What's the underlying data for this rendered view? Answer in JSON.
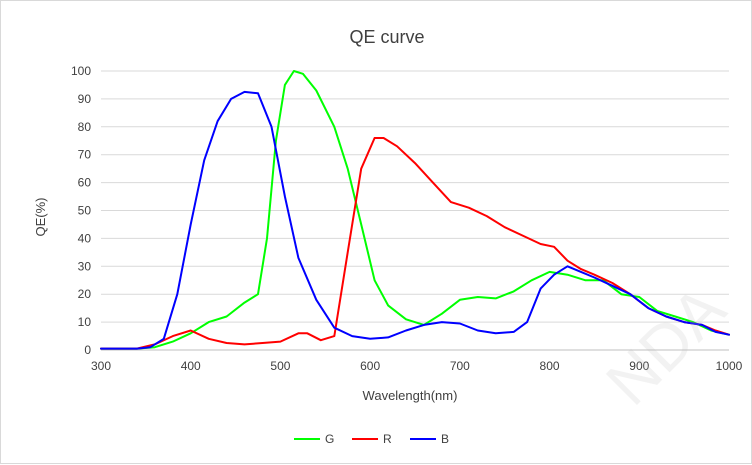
{
  "chart_data": {
    "type": "line",
    "title": "QE curve",
    "xlabel": "Wavelength(nm)",
    "ylabel": "QE(%)",
    "xlim": [
      300,
      1000
    ],
    "ylim": [
      0,
      100
    ],
    "x_ticks": [
      300,
      400,
      500,
      600,
      700,
      800,
      900,
      1000
    ],
    "y_ticks": [
      0,
      10,
      20,
      30,
      40,
      50,
      60,
      70,
      80,
      90,
      100
    ],
    "grid": "horizontal",
    "legend_position": "bottom",
    "series": [
      {
        "name": "G",
        "color": "#00ff00",
        "points": [
          [
            300,
            0.5
          ],
          [
            340,
            0.5
          ],
          [
            360,
            1
          ],
          [
            380,
            3
          ],
          [
            400,
            6
          ],
          [
            420,
            10
          ],
          [
            440,
            12
          ],
          [
            460,
            17
          ],
          [
            475,
            20
          ],
          [
            485,
            40
          ],
          [
            495,
            75
          ],
          [
            505,
            95
          ],
          [
            515,
            100
          ],
          [
            525,
            99
          ],
          [
            540,
            93
          ],
          [
            560,
            80
          ],
          [
            575,
            65
          ],
          [
            590,
            45
          ],
          [
            605,
            25
          ],
          [
            620,
            16
          ],
          [
            640,
            11
          ],
          [
            660,
            9
          ],
          [
            680,
            13
          ],
          [
            700,
            18
          ],
          [
            720,
            19
          ],
          [
            740,
            18.5
          ],
          [
            760,
            21
          ],
          [
            780,
            25
          ],
          [
            800,
            28
          ],
          [
            820,
            27
          ],
          [
            840,
            25
          ],
          [
            860,
            25
          ],
          [
            880,
            20
          ],
          [
            900,
            19
          ],
          [
            920,
            14
          ],
          [
            940,
            12
          ],
          [
            960,
            10
          ],
          [
            980,
            7
          ],
          [
            1000,
            5.5
          ]
        ]
      },
      {
        "name": "R",
        "color": "#ff0000",
        "points": [
          [
            300,
            0.5
          ],
          [
            340,
            0.5
          ],
          [
            360,
            2
          ],
          [
            380,
            5
          ],
          [
            400,
            7
          ],
          [
            420,
            4
          ],
          [
            440,
            2.5
          ],
          [
            460,
            2
          ],
          [
            480,
            2.5
          ],
          [
            500,
            3
          ],
          [
            520,
            6
          ],
          [
            530,
            6
          ],
          [
            545,
            3.5
          ],
          [
            560,
            5
          ],
          [
            575,
            35
          ],
          [
            590,
            65
          ],
          [
            605,
            76
          ],
          [
            615,
            76
          ],
          [
            630,
            73
          ],
          [
            650,
            67
          ],
          [
            670,
            60
          ],
          [
            690,
            53
          ],
          [
            710,
            51
          ],
          [
            730,
            48
          ],
          [
            750,
            44
          ],
          [
            770,
            41
          ],
          [
            790,
            38
          ],
          [
            805,
            37
          ],
          [
            820,
            32
          ],
          [
            835,
            29
          ],
          [
            850,
            27
          ],
          [
            870,
            24
          ],
          [
            890,
            20
          ],
          [
            910,
            15
          ],
          [
            930,
            12
          ],
          [
            950,
            10
          ],
          [
            970,
            9
          ],
          [
            985,
            7
          ],
          [
            1000,
            5.5
          ]
        ]
      },
      {
        "name": "B",
        "color": "#0000ff",
        "points": [
          [
            300,
            0.5
          ],
          [
            340,
            0.5
          ],
          [
            355,
            1
          ],
          [
            370,
            4
          ],
          [
            385,
            20
          ],
          [
            400,
            45
          ],
          [
            415,
            68
          ],
          [
            430,
            82
          ],
          [
            445,
            90
          ],
          [
            460,
            92.5
          ],
          [
            475,
            92
          ],
          [
            490,
            80
          ],
          [
            505,
            55
          ],
          [
            520,
            33
          ],
          [
            540,
            18
          ],
          [
            560,
            8
          ],
          [
            580,
            5
          ],
          [
            600,
            4
          ],
          [
            620,
            4.5
          ],
          [
            640,
            7
          ],
          [
            660,
            9
          ],
          [
            680,
            10
          ],
          [
            700,
            9.5
          ],
          [
            720,
            7
          ],
          [
            740,
            6
          ],
          [
            760,
            6.5
          ],
          [
            775,
            10
          ],
          [
            790,
            22
          ],
          [
            805,
            27
          ],
          [
            820,
            30
          ],
          [
            835,
            28
          ],
          [
            850,
            26
          ],
          [
            870,
            23
          ],
          [
            890,
            20
          ],
          [
            910,
            15
          ],
          [
            930,
            12
          ],
          [
            950,
            10
          ],
          [
            970,
            9
          ],
          [
            985,
            6.5
          ],
          [
            1000,
            5.5
          ]
        ]
      }
    ]
  },
  "watermark_text": "NDA"
}
